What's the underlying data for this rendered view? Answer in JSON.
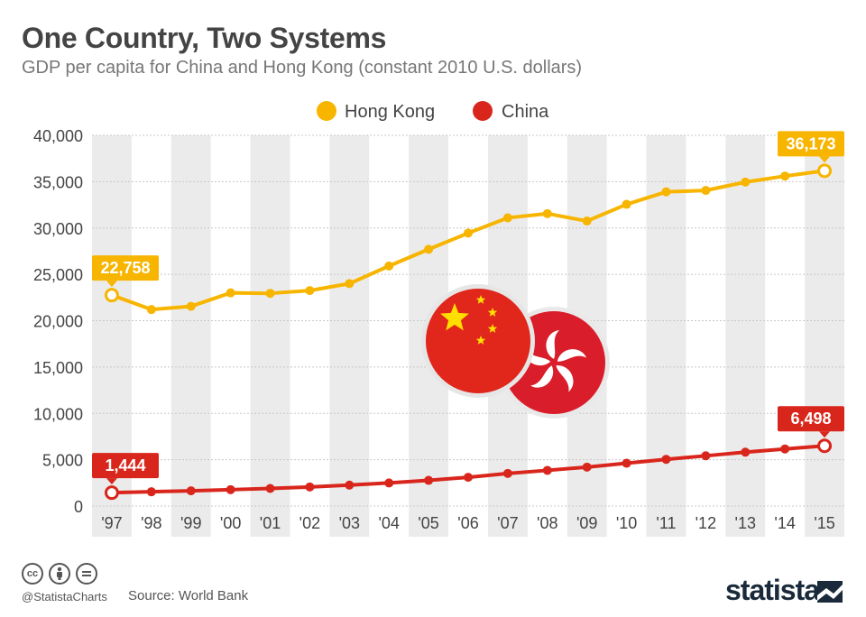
{
  "header": {
    "title": "One Country, Two Systems",
    "subtitle": "GDP per capita for China and Hong Kong (constant 2010 U.S. dollars)"
  },
  "footer": {
    "handle": "@StatistaCharts",
    "source": "Source: World Bank",
    "brand": "statista",
    "license_icons": [
      "cc",
      "by",
      "nd"
    ]
  },
  "colors": {
    "hong_kong": "#f7b500",
    "china": "#d9261c",
    "stripe": "#ebebeb",
    "text": "#444444"
  },
  "chart_data": {
    "type": "line",
    "categories": [
      "'97",
      "'98",
      "'99",
      "'00",
      "'01",
      "'02",
      "'03",
      "'04",
      "'05",
      "'06",
      "'07",
      "'08",
      "'09",
      "'10",
      "'11",
      "'12",
      "'13",
      "'14",
      "'15"
    ],
    "ylim": [
      0,
      40000
    ],
    "yticks": [
      "0",
      "5,000",
      "10,000",
      "15,000",
      "20,000",
      "25,000",
      "30,000",
      "35,000",
      "40,000"
    ],
    "legend_position": "top-center",
    "series": [
      {
        "name": "Hong Kong",
        "color": "#f7b500",
        "values": [
          22758,
          21200,
          21550,
          23000,
          22950,
          23250,
          24000,
          25900,
          27700,
          29450,
          31100,
          31550,
          30750,
          32550,
          33900,
          34050,
          34950,
          35600,
          36173
        ]
      },
      {
        "name": "China",
        "color": "#d9261c",
        "values": [
          1444,
          1540,
          1640,
          1770,
          1900,
          2060,
          2260,
          2490,
          2770,
          3100,
          3520,
          3850,
          4200,
          4620,
          5040,
          5420,
          5810,
          6160,
          6498
        ]
      }
    ],
    "annotations": [
      {
        "series": "Hong Kong",
        "index": 0,
        "text": "22,758"
      },
      {
        "series": "Hong Kong",
        "index": 18,
        "text": "36,173"
      },
      {
        "series": "China",
        "index": 0,
        "text": "1,444"
      },
      {
        "series": "China",
        "index": 18,
        "text": "6,498"
      }
    ]
  }
}
